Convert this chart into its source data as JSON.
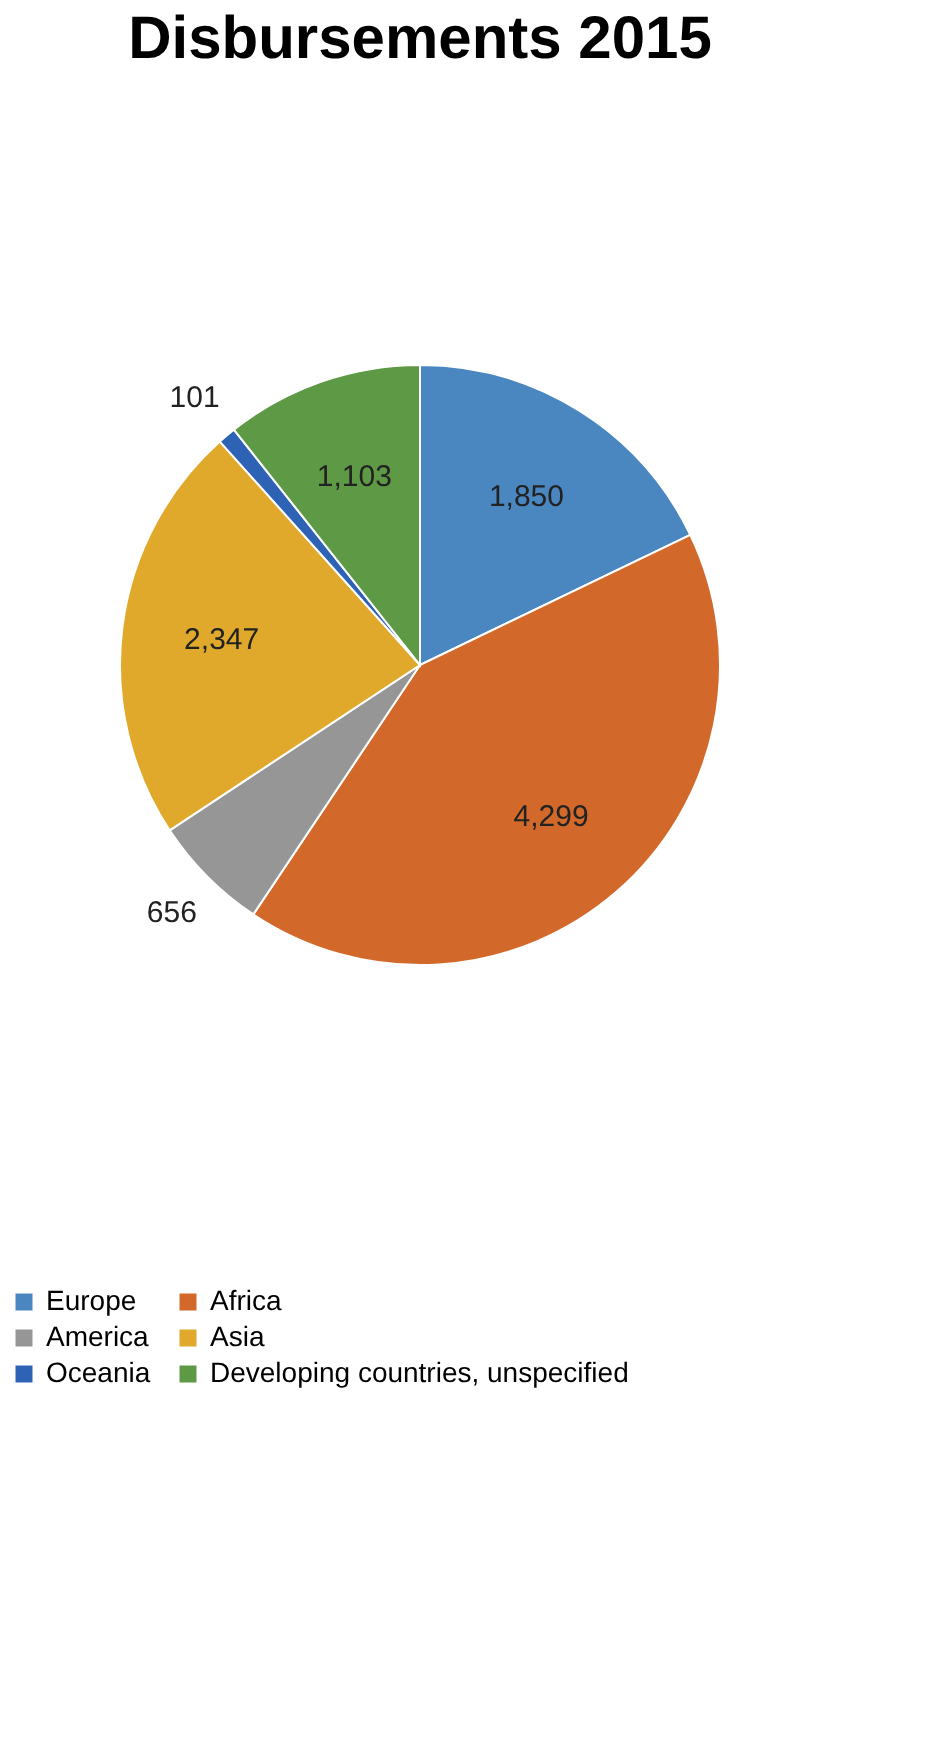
{
  "chart_data": {
    "type": "pie",
    "title": "Disbursements 2015",
    "categories": [
      "Europe",
      "Africa",
      "America",
      "Asia",
      "Oceania",
      "Developing countries, unspecified"
    ],
    "values": [
      1850,
      4299,
      656,
      2347,
      101,
      1103
    ],
    "colors": [
      "#4a86c0",
      "#d2692a",
      "#969696",
      "#e0a92b",
      "#2e62b5",
      "#5e9a45"
    ],
    "data_labels": true,
    "value_labels": [
      "1,850",
      "4,299",
      "656",
      "2,347",
      "101",
      "1,103"
    ],
    "legend": "bottom"
  }
}
